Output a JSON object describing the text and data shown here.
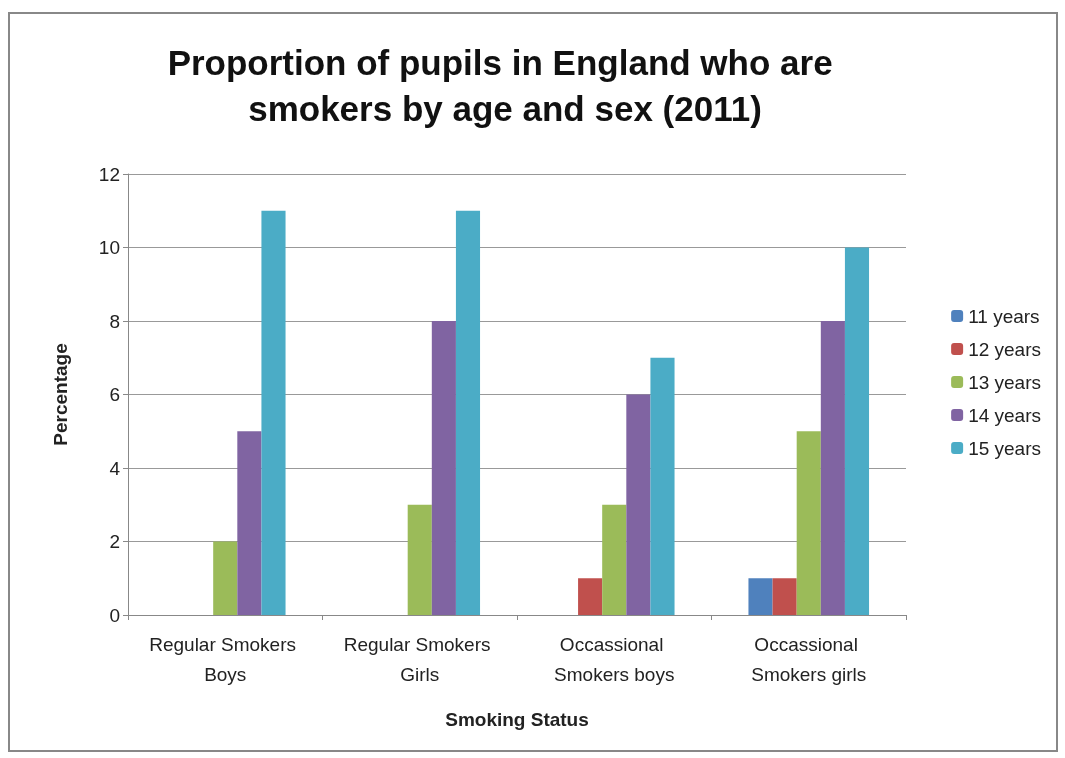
{
  "chart_data": {
    "type": "bar",
    "title": "Proportion of pupils in England who are smokers by age and sex (2011)",
    "xlabel": "Smoking Status",
    "ylabel": "Percentage",
    "categories": [
      "Regular Smokers Boys",
      "Regular Smokers Girls",
      "Occassional Smokers boys",
      "Occassional Smokers girls"
    ],
    "series": [
      {
        "name": "11 years",
        "color": "#4f81bd",
        "values": [
          0,
          0,
          0,
          1
        ]
      },
      {
        "name": "12 years",
        "color": "#c0504d",
        "values": [
          0,
          0,
          1,
          1
        ]
      },
      {
        "name": "13 years",
        "color": "#9bbb59",
        "values": [
          2,
          3,
          3,
          5
        ]
      },
      {
        "name": "14 years",
        "color": "#8064a2",
        "values": [
          5,
          8,
          6,
          8
        ]
      },
      {
        "name": "15 years",
        "color": "#4bacc6",
        "values": [
          11,
          11,
          7,
          10
        ]
      }
    ],
    "ylim": [
      0,
      12
    ],
    "yticks": [
      0,
      2,
      4,
      6,
      8,
      10,
      12
    ],
    "grid": "y",
    "legend": "right"
  }
}
